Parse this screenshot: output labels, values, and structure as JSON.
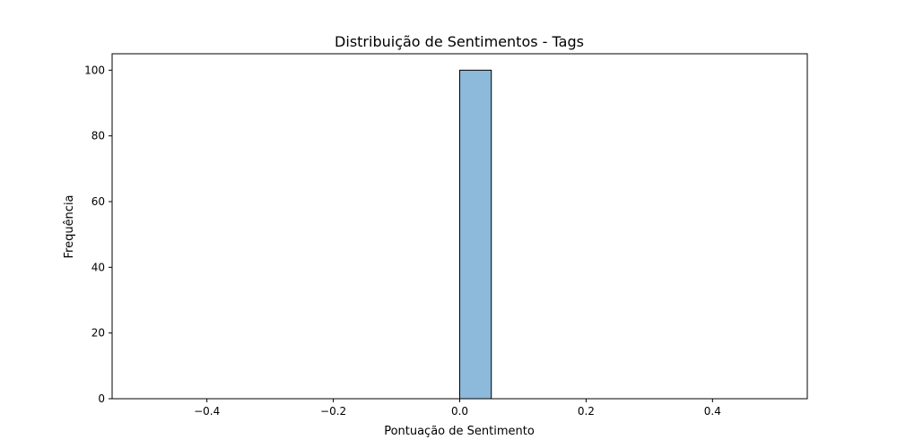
{
  "chart_data": {
    "type": "bar",
    "title": "Distribuição de Sentimentos - Tags",
    "xlabel": "Pontuação de Sentimento",
    "ylabel": "Frequência",
    "xlim": [
      -0.55,
      0.55
    ],
    "ylim": [
      0,
      105
    ],
    "xticks": [
      -0.4,
      -0.2,
      0.0,
      0.2,
      0.4
    ],
    "xtick_labels": [
      "−0.4",
      "−0.2",
      "0.0",
      "0.2",
      "0.4"
    ],
    "yticks": [
      0,
      20,
      40,
      60,
      80,
      100
    ],
    "ytick_labels": [
      "0",
      "20",
      "40",
      "60",
      "80",
      "100"
    ],
    "bins": [
      {
        "x0": -0.5,
        "x1": -0.45,
        "count": 0
      },
      {
        "x0": -0.45,
        "x1": -0.4,
        "count": 0
      },
      {
        "x0": -0.4,
        "x1": -0.35,
        "count": 0
      },
      {
        "x0": -0.35,
        "x1": -0.3,
        "count": 0
      },
      {
        "x0": -0.3,
        "x1": -0.25,
        "count": 0
      },
      {
        "x0": -0.25,
        "x1": -0.2,
        "count": 0
      },
      {
        "x0": -0.2,
        "x1": -0.15,
        "count": 0
      },
      {
        "x0": -0.15,
        "x1": -0.1,
        "count": 0
      },
      {
        "x0": -0.1,
        "x1": -0.05,
        "count": 0
      },
      {
        "x0": -0.05,
        "x1": 0.0,
        "count": 0
      },
      {
        "x0": 0.0,
        "x1": 0.05,
        "count": 100
      },
      {
        "x0": 0.05,
        "x1": 0.1,
        "count": 0
      },
      {
        "x0": 0.1,
        "x1": 0.15,
        "count": 0
      },
      {
        "x0": 0.15,
        "x1": 0.2,
        "count": 0
      },
      {
        "x0": 0.2,
        "x1": 0.25,
        "count": 0
      },
      {
        "x0": 0.25,
        "x1": 0.3,
        "count": 0
      },
      {
        "x0": 0.3,
        "x1": 0.35,
        "count": 0
      },
      {
        "x0": 0.35,
        "x1": 0.4,
        "count": 0
      },
      {
        "x0": 0.4,
        "x1": 0.45,
        "count": 0
      },
      {
        "x0": 0.45,
        "x1": 0.5,
        "count": 0
      }
    ],
    "bar_color": "#8db9da",
    "edge_color": "#000000",
    "grid": false,
    "legend": "none"
  }
}
